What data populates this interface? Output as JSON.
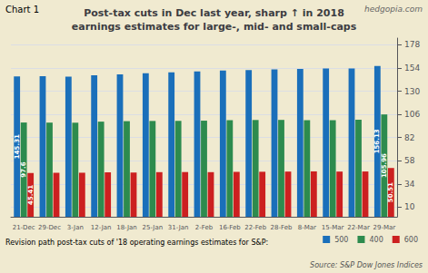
{
  "chart_data": {
    "type": "bar",
    "title": "Post-tax cuts in Dec last year, sharp ↑ in 2018",
    "subtitle": "earnings estimates for large-, mid- and small-caps",
    "xlabel": "Revision path post-tax cuts of '18 operating earnings estimates for S&P:",
    "annotations": [
      "Chart 1",
      "hedgopia.com",
      "Source: S&P Dow Jones Indices"
    ],
    "categories": [
      "21-Dec",
      "29-Dec",
      "3-Jan",
      "12-Jan",
      "18-Jan",
      "25-Jan",
      "31-Jan",
      "2-Feb",
      "16-Feb",
      "22-Feb",
      "28-Feb",
      "8-Mar",
      "15-Mar",
      "22-Mar",
      "29-Mar"
    ],
    "series": [
      {
        "name": "500",
        "color": "#1a6fba",
        "values": [
          145.31,
          145.5,
          145.2,
          146.5,
          147.5,
          148.5,
          149.5,
          150.5,
          151.5,
          152.0,
          152.5,
          153.0,
          153.5,
          153.5,
          156.13
        ],
        "value_labels": [
          "145.31",
          null,
          null,
          null,
          null,
          null,
          null,
          null,
          null,
          null,
          null,
          null,
          null,
          null,
          "156.13"
        ]
      },
      {
        "name": "400",
        "color": "#2d8b4e",
        "values": [
          97.6,
          97.5,
          97.4,
          98.5,
          99.0,
          99.2,
          99.3,
          99.5,
          100.0,
          100.2,
          100.3,
          100.0,
          100.0,
          100.5,
          105.96
        ],
        "value_labels": [
          "97.6",
          null,
          null,
          null,
          null,
          null,
          null,
          null,
          null,
          null,
          null,
          null,
          null,
          null,
          "105.96"
        ]
      },
      {
        "name": "600",
        "color": "#cc2020",
        "values": [
          45.41,
          45.5,
          45.6,
          46.0,
          45.8,
          46.2,
          46.3,
          46.2,
          46.5,
          46.6,
          46.8,
          47.0,
          46.8,
          46.9,
          50.51
        ],
        "value_labels": [
          "45.41",
          null,
          null,
          null,
          null,
          null,
          null,
          null,
          null,
          null,
          null,
          null,
          null,
          null,
          "50.51"
        ]
      }
    ],
    "ylim": [
      0,
      185
    ],
    "yticks": [
      10,
      34,
      58,
      82,
      106,
      130,
      154,
      178
    ],
    "grid": true,
    "legend": "bottom right"
  }
}
